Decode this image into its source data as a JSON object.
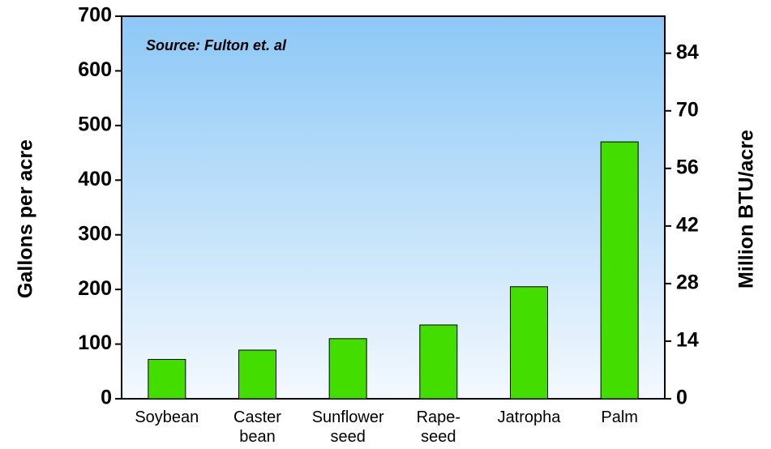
{
  "chart_data": {
    "type": "bar",
    "annotation": "Source: Fulton et. al",
    "y_label": "Gallons per acre",
    "y2_label": "Million BTU/acre",
    "categories": [
      "Soybean",
      "Caster\nbean",
      "Sunflower\nseed",
      "Rape-\nseed",
      "Jatropha",
      "Palm"
    ],
    "values": [
      72,
      89,
      110,
      135,
      205,
      470
    ],
    "color": "#44dd00",
    "ylim": [
      0,
      700
    ],
    "yticks": [
      0,
      100,
      200,
      300,
      400,
      500,
      600,
      700
    ],
    "y2lim": [
      0,
      93
    ],
    "y2ticks": [
      0,
      14,
      28,
      42,
      56,
      70,
      84
    ]
  }
}
